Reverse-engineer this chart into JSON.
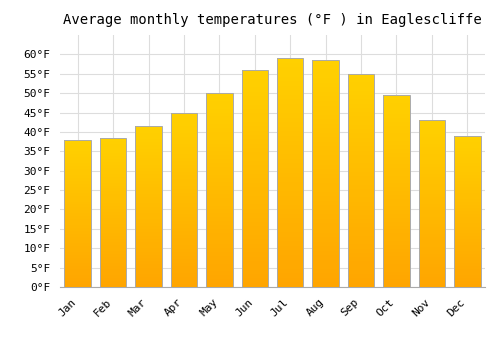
{
  "title": "Average monthly temperatures (°F ) in Eaglescliffe",
  "months": [
    "Jan",
    "Feb",
    "Mar",
    "Apr",
    "May",
    "Jun",
    "Jul",
    "Aug",
    "Sep",
    "Oct",
    "Nov",
    "Dec"
  ],
  "values": [
    38,
    38.5,
    41.5,
    45,
    50,
    56,
    59,
    58.5,
    55,
    49.5,
    43,
    39
  ],
  "bar_color_main": "#FFA500",
  "bar_color_highlight": "#FFD700",
  "bar_edge_color": "#AAAAAA",
  "background_color": "#FFFFFF",
  "grid_color": "#DDDDDD",
  "title_fontsize": 10,
  "tick_fontsize": 8,
  "ylim": [
    0,
    65
  ],
  "yticks": [
    0,
    5,
    10,
    15,
    20,
    25,
    30,
    35,
    40,
    45,
    50,
    55,
    60
  ]
}
